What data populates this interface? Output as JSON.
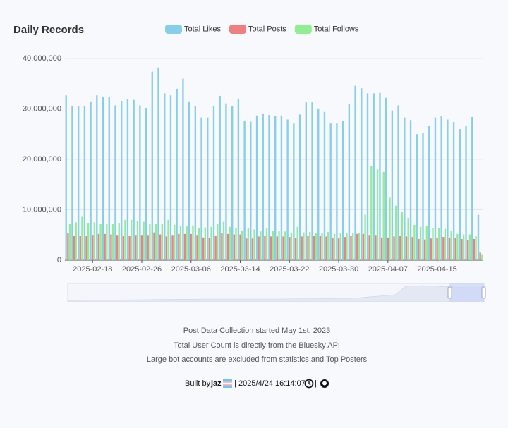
{
  "chart_data": {
    "type": "bar",
    "title": "Daily Records",
    "categories": [
      null,
      null,
      null,
      null,
      "2025-02-18",
      null,
      null,
      null,
      null,
      null,
      null,
      null,
      "2025-02-26",
      null,
      null,
      null,
      null,
      null,
      null,
      null,
      "2025-03-06",
      null,
      null,
      null,
      null,
      null,
      null,
      null,
      "2025-03-14",
      null,
      null,
      null,
      null,
      null,
      null,
      null,
      "2025-03-22",
      null,
      null,
      null,
      null,
      null,
      null,
      null,
      "2025-03-30",
      null,
      null,
      null,
      null,
      null,
      null,
      null,
      "2025-04-07",
      null,
      null,
      null,
      null,
      null,
      null,
      null,
      "2025-04-15",
      null,
      null,
      null,
      null,
      null,
      null,
      null
    ],
    "series": [
      {
        "name": "Total Likes",
        "color": "#87ceeb",
        "values": [
          32700000,
          30500000,
          30600000,
          30600000,
          31500000,
          32700000,
          32300000,
          32300000,
          30700000,
          31600000,
          32000000,
          31800000,
          30700000,
          30200000,
          37400000,
          38200000,
          33100000,
          32700000,
          34000000,
          36000000,
          31500000,
          30500000,
          28300000,
          28300000,
          30500000,
          32600000,
          31100000,
          30600000,
          31900000,
          27700000,
          27500000,
          28700000,
          29100000,
          28800000,
          28600000,
          28700000,
          27900000,
          27100000,
          28900000,
          31300000,
          31300000,
          30100000,
          29400000,
          27100000,
          27100000,
          27600000,
          31000000,
          34600000,
          34100000,
          33100000,
          33100000,
          33200000,
          32200000,
          29700000,
          30700000,
          28300000,
          27800000,
          25000000,
          25200000,
          26700000,
          28300000,
          28600000,
          27900000,
          27400000,
          26000000,
          26700000,
          28400000,
          9000000
        ]
      },
      {
        "name": "Total Posts",
        "color": "#f08080",
        "values": [
          5300000,
          4800000,
          4800000,
          4900000,
          5000000,
          5200000,
          5200000,
          5100000,
          5000000,
          4800000,
          4800000,
          5000000,
          5000000,
          5000000,
          5500000,
          5100000,
          4700000,
          5000000,
          5200000,
          5200000,
          5200000,
          5000000,
          4500000,
          4400000,
          4900000,
          5300000,
          5200000,
          5100000,
          5100000,
          4300000,
          4300000,
          4700000,
          4800000,
          4700000,
          4700000,
          4700000,
          4600000,
          4400000,
          4700000,
          4900000,
          4900000,
          4900000,
          4700000,
          4400000,
          4300000,
          4600000,
          4800000,
          5200000,
          5200000,
          5000000,
          5000000,
          4500000,
          4500000,
          4700000,
          4800000,
          4700000,
          4600000,
          4200000,
          4100000,
          4300000,
          4400000,
          4600000,
          4500000,
          4400000,
          4200000,
          4000000,
          4200000,
          1500000
        ]
      },
      {
        "name": "Total Follows",
        "color": "#90ee90",
        "values": [
          7200000,
          7500000,
          8600000,
          7400000,
          7500000,
          7200000,
          7300000,
          7200000,
          7400000,
          8000000,
          8000000,
          7800000,
          7600000,
          7200000,
          7200000,
          7200000,
          8000000,
          7000000,
          6800000,
          6700000,
          6900000,
          6400000,
          6500000,
          6600000,
          7200000,
          7600000,
          6600000,
          6300000,
          5800000,
          6300000,
          6100000,
          5700000,
          6300000,
          5800000,
          5700000,
          5700000,
          5500000,
          6600000,
          5500000,
          5600000,
          5400000,
          5300000,
          5600000,
          5200000,
          5300000,
          5300000,
          5300000,
          5300000,
          9000000,
          18700000,
          18000000,
          17500000,
          12400000,
          10800000,
          9500000,
          8400000,
          7000000,
          6600000,
          6800000,
          6400000,
          6300000,
          6200000,
          5800000,
          5200000,
          5100000,
          5100000,
          4800000,
          1200000
        ]
      }
    ],
    "ylim": [
      0,
      40000000
    ],
    "yticks": [
      0,
      {
        "value": 10000000,
        "label": "10,000,000"
      },
      {
        "value": 20000000,
        "label": "20,000,000"
      },
      {
        "value": 30000000,
        "label": "30,000,000"
      },
      {
        "value": 40000000,
        "label": "40,000,000"
      }
    ],
    "grid": true,
    "legend": "top"
  },
  "footer": {
    "notes": [
      "Post Data Collection started May 1st, 2023",
      "Total User Count is directly from the Bluesky API",
      "Large bot accounts are excluded from statistics and Top Posters"
    ],
    "built_by": "Built by",
    "author": "jaz",
    "separator": "|",
    "timestamp": "2025/4/24 16:14:07"
  }
}
